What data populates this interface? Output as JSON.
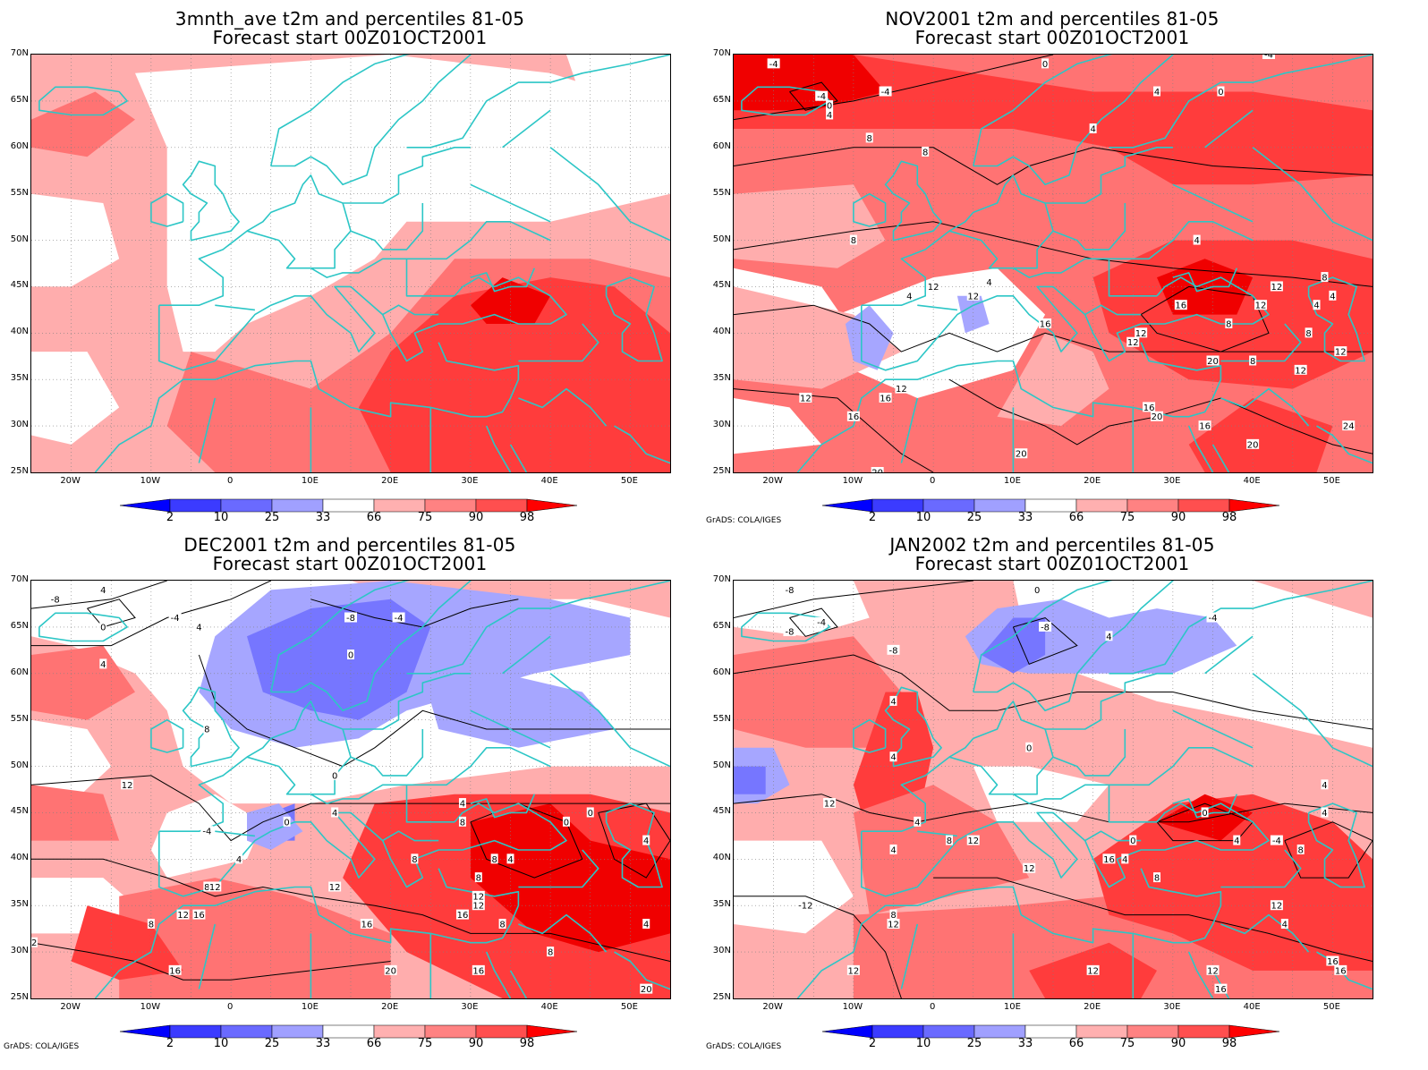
{
  "panels": [
    {
      "id": "p1",
      "title_line1": "3mnth_ave t2m and percentiles 81-05",
      "title_line2": "Forecast start 00Z01OCT2001",
      "contours": false,
      "credit": ""
    },
    {
      "id": "p2",
      "title_line1": "NOV2001 t2m and percentiles 81-05",
      "title_line2": "Forecast start 00Z01OCT2001",
      "contours": true,
      "credit": "GrADS: COLA/IGES"
    },
    {
      "id": "p3",
      "title_line1": "DEC2001 t2m and percentiles 81-05",
      "title_line2": "Forecast start 00Z01OCT2001",
      "contours": true,
      "credit": "GrADS: COLA/IGES"
    },
    {
      "id": "p4",
      "title_line1": "JAN2002 t2m and percentiles 81-05",
      "title_line2": "Forecast start 00Z01OCT2001",
      "contours": true,
      "credit": "GrADS: COLA/IGES"
    }
  ],
  "lat_labels": [
    "70N",
    "65N",
    "60N",
    "55N",
    "50N",
    "45N",
    "40N",
    "35N",
    "30N",
    "25N"
  ],
  "lon_labels": [
    "20W",
    "10W",
    "0",
    "10E",
    "20E",
    "30E",
    "40E",
    "50E"
  ],
  "colorbar": {
    "labels": [
      "2",
      "10",
      "25",
      "33",
      "66",
      "75",
      "90",
      "98"
    ],
    "colors": [
      "#0000ff",
      "#3b3bff",
      "#6a6aff",
      "#a0a0ff",
      "#ffffff",
      "#ffb0b0",
      "#ff8282",
      "#ff4f4f",
      "#ff0000"
    ]
  },
  "shading_colors": {
    "white": "#ffffff",
    "light_red": "#ffadad",
    "mid_red": "#ff7373",
    "red": "#ff3c3c",
    "deep_red": "#f00000",
    "light_blue": "#a6a6ff",
    "mid_blue": "#7676ff",
    "deep_blue": "#3c3cff",
    "coast": "#2cc6c6"
  },
  "contour_labels": {
    "p2": [
      "-4",
      "-4",
      "-4",
      "0",
      "0",
      "-4",
      "4",
      "0",
      "4",
      "4",
      "8",
      "8",
      "8",
      "12",
      "4",
      "4",
      "4",
      "8",
      "12",
      "12",
      "16",
      "16",
      "12",
      "4",
      "8",
      "12",
      "8",
      "12",
      "12",
      "20",
      "12",
      "12",
      "16",
      "16",
      "16",
      "20",
      "16",
      "20",
      "24",
      "20",
      "20",
      "4",
      "8",
      "12"
    ],
    "p3": [
      "4",
      "-8",
      "-4",
      "0",
      "-8",
      "0",
      "4",
      "-4",
      "4",
      "8",
      "12",
      "0",
      "0",
      "4",
      "-4",
      "4",
      "4",
      "8",
      "0",
      "8",
      "8",
      "12",
      "12",
      "16",
      "16",
      "12",
      "8",
      "8",
      "12",
      "16",
      "20",
      "20",
      "4",
      "12",
      "16",
      "0",
      "4",
      "8",
      "8",
      "12",
      "4",
      "8",
      "16"
    ],
    "p4": [
      "-8",
      "-4",
      "-8",
      "0",
      "-8",
      "-4",
      "4",
      "4",
      "4",
      "12",
      "4",
      "4",
      "8",
      "12",
      "12",
      "0",
      "0",
      "4",
      "4",
      "-4",
      "4",
      "8",
      "16",
      "8",
      "12",
      "12",
      "4",
      "8",
      "0",
      "12",
      "16",
      "12",
      "12",
      "16",
      "16",
      "4",
      "-12",
      "-8"
    ]
  }
}
